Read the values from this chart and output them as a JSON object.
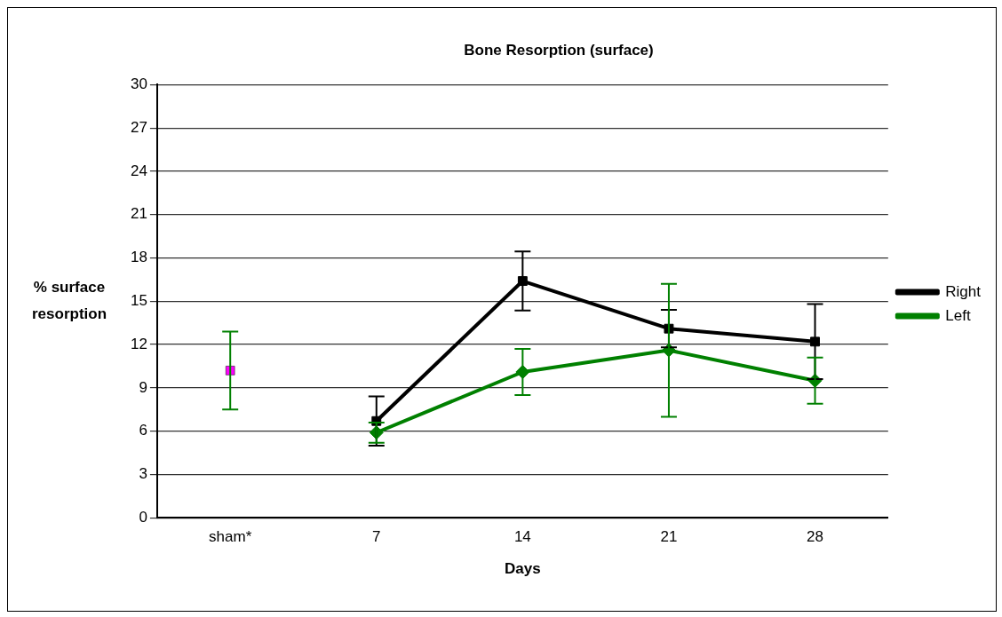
{
  "chart_data": {
    "type": "line",
    "title": "Bone Resorption (surface)",
    "xlabel": "Days",
    "ylabel": "% surface resorption",
    "categories": [
      "sham*",
      "7",
      "14",
      "21",
      "28"
    ],
    "series": [
      {
        "name": "Right",
        "color": "#000000",
        "marker": "square",
        "values": [
          null,
          6.7,
          16.4,
          13.1,
          12.2
        ],
        "errors": [
          null,
          1.7,
          2.05,
          1.3,
          2.6
        ]
      },
      {
        "name": "Left",
        "color": "#008000",
        "marker": "diamond",
        "values": [
          null,
          5.9,
          10.1,
          11.6,
          9.5
        ],
        "errors": [
          null,
          0.7,
          1.6,
          4.6,
          1.6
        ]
      },
      {
        "type": "scatter",
        "color": "#008000",
        "colors": [
          "#ff00ff",
          null,
          null,
          null,
          null
        ],
        "marker": "square",
        "values": [
          10.2,
          null,
          null,
          null,
          null
        ],
        "errors": [
          2.7,
          null,
          null,
          null,
          null
        ]
      }
    ],
    "ylim": [
      0,
      30
    ],
    "yticks": [
      0,
      3,
      6,
      9,
      12,
      15,
      18,
      21,
      24,
      27,
      30
    ],
    "grid": "y",
    "legend": "right",
    "line_style": "solid"
  }
}
